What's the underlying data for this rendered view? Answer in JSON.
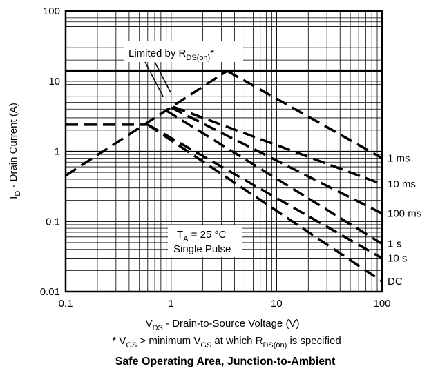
{
  "chart_data": {
    "type": "line",
    "title": "Safe Operating Area, Junction-to-Ambient",
    "footnote": {
      "prefix": "* V",
      "sub1": "GS",
      "mid": " > minimum V",
      "sub2": "GS",
      "mid2": " at which R",
      "sub3": "DS(on)",
      "suffix": " is specified"
    },
    "xlabel": {
      "main": "V",
      "sub": "DS",
      "rest": " - Drain-to-Source Voltage (V)"
    },
    "ylabel": {
      "main": "I",
      "sub": "D",
      "rest": " - Drain Current (A)"
    },
    "x_scale": "log",
    "y_scale": "log",
    "xlim": [
      0.1,
      100
    ],
    "ylim": [
      0.01,
      100
    ],
    "x_ticks": [
      {
        "value": 0.1,
        "label": "0.1"
      },
      {
        "value": 1,
        "label": "1"
      },
      {
        "value": 10,
        "label": "10"
      },
      {
        "value": 100,
        "label": "100"
      }
    ],
    "y_ticks": [
      {
        "value": 0.01,
        "label": "0.01"
      },
      {
        "value": 0.1,
        "label": "0.1"
      },
      {
        "value": 1,
        "label": "1"
      },
      {
        "value": 10,
        "label": "10"
      },
      {
        "value": 100,
        "label": "100"
      }
    ],
    "grid": true,
    "limits": [
      {
        "name": "current-limit-solid",
        "style": "solid",
        "x": [
          0.1,
          100
        ],
        "y": [
          14,
          14
        ]
      },
      {
        "name": "rds-on-limit",
        "style": "dashed",
        "x": [
          0.1,
          3.4
        ],
        "y": [
          0.45,
          14
        ]
      },
      {
        "name": "low-current-limit",
        "style": "dashed",
        "x": [
          0.1,
          0.6
        ],
        "y": [
          2.4,
          2.4
        ]
      }
    ],
    "series": [
      {
        "name": "1 ms",
        "style": "dashed",
        "x": [
          3.4,
          100
        ],
        "y": [
          14,
          0.8
        ]
      },
      {
        "name": "10 ms",
        "style": "dashed",
        "x": [
          1.05,
          100
        ],
        "y": [
          4.3,
          0.34
        ]
      },
      {
        "name": "100 ms",
        "style": "dashed",
        "x": [
          1.0,
          100
        ],
        "y": [
          4.2,
          0.13
        ]
      },
      {
        "name": "1 s",
        "style": "dashed",
        "x": [
          0.9,
          100
        ],
        "y": [
          3.8,
          0.048
        ]
      },
      {
        "name": "10 s",
        "style": "dashed",
        "x": [
          0.6,
          100
        ],
        "y": [
          2.4,
          0.03
        ]
      },
      {
        "name": "DC",
        "style": "dashed",
        "x": [
          0.6,
          100
        ],
        "y": [
          2.4,
          0.014
        ]
      }
    ],
    "annotations": {
      "rds_label_main": "Limited by R",
      "rds_label_sub": "DS(on)",
      "rds_label_star": "*",
      "ta_main": "T",
      "ta_sub": "A",
      "ta_rest": " = 25 °C",
      "pulse_text": "Single Pulse"
    }
  }
}
